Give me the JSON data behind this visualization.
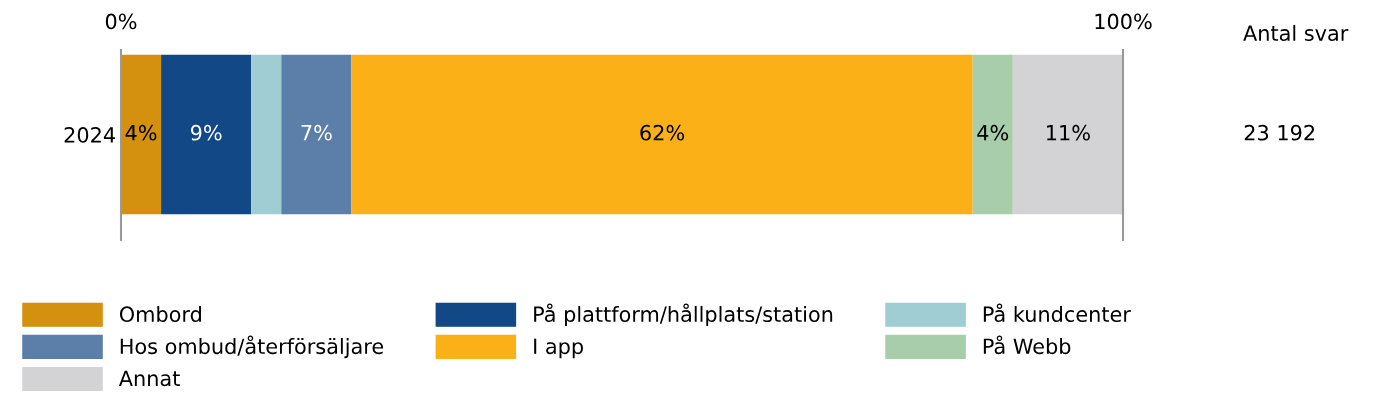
{
  "chart_data": {
    "type": "bar",
    "orientation": "horizontal",
    "stacked": true,
    "categories": [
      "2024"
    ],
    "series": [
      {
        "name": "Ombord",
        "color": "#d4910f",
        "values": [
          4
        ],
        "value_labels": [
          "4%"
        ]
      },
      {
        "name": "På plattform/hållplats/station",
        "color": "#134886",
        "values": [
          9
        ],
        "value_labels": [
          "9%"
        ]
      },
      {
        "name": "På kundcenter",
        "color": "#9fcdd3",
        "values": [
          3
        ],
        "value_labels": [
          null
        ]
      },
      {
        "name": "Hos ombud/återförsäljare",
        "color": "#5b7fa8",
        "values": [
          7
        ],
        "value_labels": [
          "7%"
        ]
      },
      {
        "name": "I app",
        "color": "#fbb018",
        "values": [
          62
        ],
        "value_labels": [
          "62%"
        ]
      },
      {
        "name": "På Webb",
        "color": "#a8cdaa",
        "values": [
          4
        ],
        "value_labels": [
          "4%"
        ]
      },
      {
        "name": "Annat",
        "color": "#d3d3d5",
        "values": [
          11
        ],
        "value_labels": [
          "11%"
        ]
      }
    ],
    "xlim": [
      0,
      100
    ],
    "xticks": [
      {
        "value": 0,
        "label": "0%"
      },
      {
        "value": 100,
        "label": "100%"
      }
    ],
    "legend": "bottom",
    "annotations": [
      "Antal svar",
      "23 192"
    ]
  }
}
